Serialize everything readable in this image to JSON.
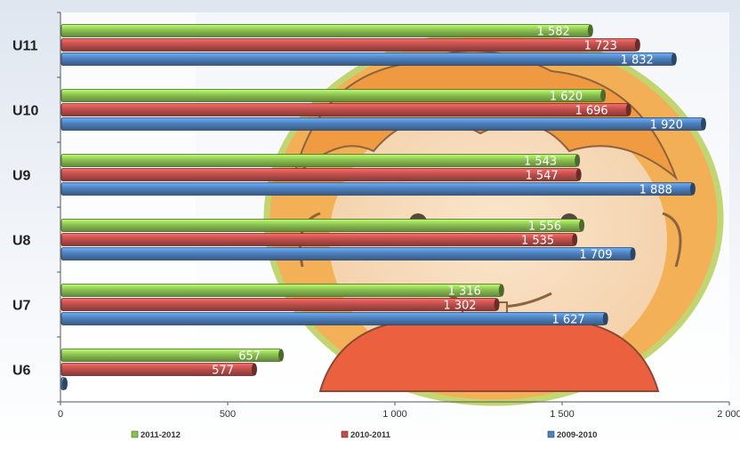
{
  "chart_data": {
    "type": "bar",
    "orientation": "horizontal",
    "categories": [
      "U11",
      "U10",
      "U9",
      "U8",
      "U7",
      "U6"
    ],
    "series": [
      {
        "name": "2011-2012",
        "color": "#8cc152",
        "values": [
          1582,
          1620,
          1543,
          1556,
          1316,
          657
        ],
        "labels": [
          "1 582",
          "1 620",
          "1 543",
          "1 556",
          "1 316",
          "657"
        ]
      },
      {
        "name": "2010-2011",
        "color": "#c0504d",
        "values": [
          1723,
          1696,
          1547,
          1535,
          1302,
          577
        ],
        "labels": [
          "1 723",
          "1 696",
          "1 547",
          "1 535",
          "1 302",
          "577"
        ]
      },
      {
        "name": "2009-2010",
        "color": "#4f81bd",
        "values": [
          1832,
          1920,
          1888,
          1709,
          1627,
          0
        ],
        "labels": [
          "1 832",
          "1 920",
          "1 888",
          "1 709",
          "1 627",
          ""
        ]
      }
    ],
    "xlim": [
      0,
      2000
    ],
    "xticks": [
      0,
      500,
      1000,
      1500,
      2000
    ],
    "xtick_labels": [
      "0",
      "500",
      "1 000",
      "1 500",
      "2 000"
    ],
    "title": "",
    "xlabel": "",
    "ylabel": "",
    "legend": "bottom",
    "grid": false
  }
}
